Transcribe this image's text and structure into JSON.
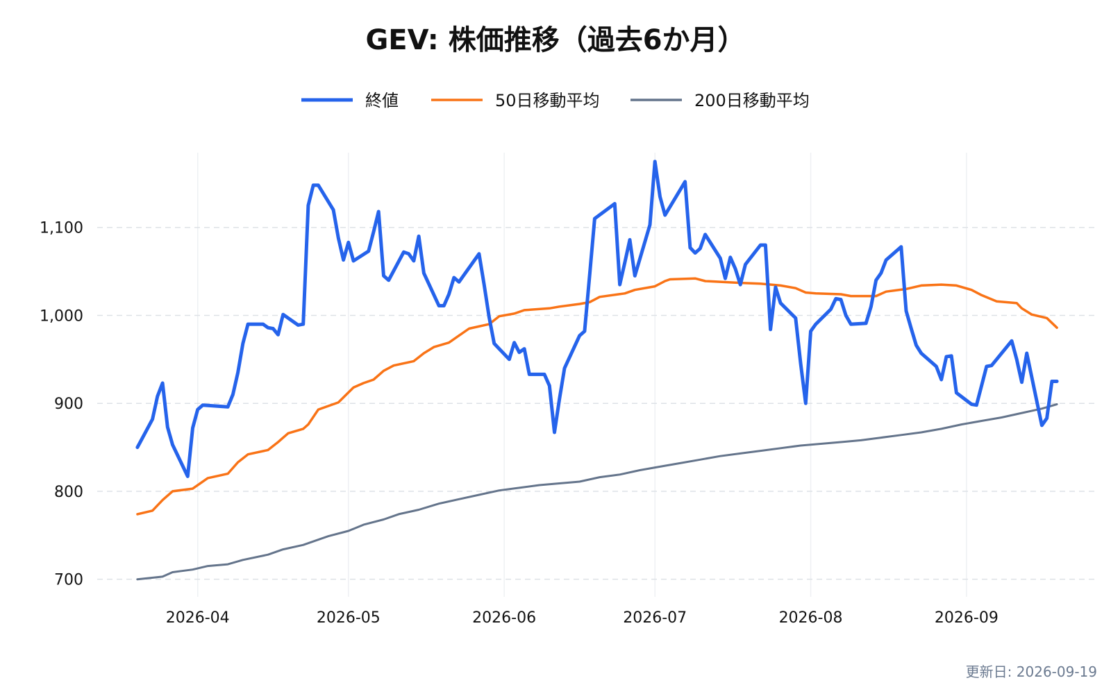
{
  "chart_data": {
    "type": "line",
    "title": "GEV: 株価推移（過去6か月）",
    "xlabel": "",
    "ylabel": "",
    "x_ticks": [
      "2026-04",
      "2026-05",
      "2026-06",
      "2026-07",
      "2026-08",
      "2026-09"
    ],
    "y_ticks": [
      700,
      800,
      900,
      1000,
      1100
    ],
    "y_tick_labels": [
      "700",
      "800",
      "900",
      "1,000",
      "1,100"
    ],
    "ylim": [
      680,
      1185
    ],
    "xlim": [
      "2026-03-12",
      "2026-09-27"
    ],
    "grid": "horizontal dashed, vertical solid light",
    "legend_position": "top-center",
    "footnote": "更新日: 2026-09-19",
    "series": [
      {
        "name": "終値",
        "color": "#2563eb",
        "points": [
          [
            "2026-03-20",
            850
          ],
          [
            "2026-03-23",
            882
          ],
          [
            "2026-03-24",
            908
          ],
          [
            "2026-03-25",
            923
          ],
          [
            "2026-03-26",
            873
          ],
          [
            "2026-03-27",
            853
          ],
          [
            "2026-03-30",
            817
          ],
          [
            "2026-03-31",
            872
          ],
          [
            "2026-04-01",
            893
          ],
          [
            "2026-04-02",
            898
          ],
          [
            "2026-04-07",
            896
          ],
          [
            "2026-04-08",
            910
          ],
          [
            "2026-04-09",
            935
          ],
          [
            "2026-04-10",
            968
          ],
          [
            "2026-04-11",
            990
          ],
          [
            "2026-04-14",
            990
          ],
          [
            "2026-04-15",
            986
          ],
          [
            "2026-04-16",
            985
          ],
          [
            "2026-04-17",
            978
          ],
          [
            "2026-04-18",
            1001
          ],
          [
            "2026-04-21",
            989
          ],
          [
            "2026-04-22",
            990
          ],
          [
            "2026-04-23",
            1125
          ],
          [
            "2026-04-24",
            1148
          ],
          [
            "2026-04-25",
            1148
          ],
          [
            "2026-04-28",
            1120
          ],
          [
            "2026-04-29",
            1088
          ],
          [
            "2026-04-30",
            1063
          ],
          [
            "2026-05-01",
            1083
          ],
          [
            "2026-05-02",
            1062
          ],
          [
            "2026-05-05",
            1073
          ],
          [
            "2026-05-06",
            1095
          ],
          [
            "2026-05-07",
            1118
          ],
          [
            "2026-05-08",
            1045
          ],
          [
            "2026-05-09",
            1040
          ],
          [
            "2026-05-12",
            1072
          ],
          [
            "2026-05-13",
            1070
          ],
          [
            "2026-05-14",
            1062
          ],
          [
            "2026-05-15",
            1090
          ],
          [
            "2026-05-16",
            1048
          ],
          [
            "2026-05-19",
            1011
          ],
          [
            "2026-05-20",
            1011
          ],
          [
            "2026-05-21",
            1024
          ],
          [
            "2026-05-22",
            1043
          ],
          [
            "2026-05-23",
            1038
          ],
          [
            "2026-05-27",
            1070
          ],
          [
            "2026-05-28",
            1035
          ],
          [
            "2026-05-29",
            998
          ],
          [
            "2026-05-30",
            968
          ],
          [
            "2026-06-02",
            950
          ],
          [
            "2026-06-03",
            969
          ],
          [
            "2026-06-04",
            958
          ],
          [
            "2026-06-05",
            962
          ],
          [
            "2026-06-06",
            933
          ],
          [
            "2026-06-09",
            933
          ],
          [
            "2026-06-10",
            920
          ],
          [
            "2026-06-11",
            867
          ],
          [
            "2026-06-12",
            905
          ],
          [
            "2026-06-13",
            940
          ],
          [
            "2026-06-16",
            977
          ],
          [
            "2026-06-17",
            982
          ],
          [
            "2026-06-18",
            1045
          ],
          [
            "2026-06-19",
            1110
          ],
          [
            "2026-06-23",
            1127
          ],
          [
            "2026-06-24",
            1035
          ],
          [
            "2026-06-25",
            1060
          ],
          [
            "2026-06-26",
            1086
          ],
          [
            "2026-06-27",
            1045
          ],
          [
            "2026-06-30",
            1103
          ],
          [
            "2026-07-01",
            1175
          ],
          [
            "2026-07-02",
            1135
          ],
          [
            "2026-07-03",
            1114
          ],
          [
            "2026-07-07",
            1152
          ],
          [
            "2026-07-08",
            1077
          ],
          [
            "2026-07-09",
            1071
          ],
          [
            "2026-07-10",
            1076
          ],
          [
            "2026-07-11",
            1092
          ],
          [
            "2026-07-14",
            1065
          ],
          [
            "2026-07-15",
            1042
          ],
          [
            "2026-07-16",
            1066
          ],
          [
            "2026-07-17",
            1053
          ],
          [
            "2026-07-18",
            1035
          ],
          [
            "2026-07-19",
            1058
          ],
          [
            "2026-07-22",
            1080
          ],
          [
            "2026-07-23",
            1080
          ],
          [
            "2026-07-24",
            984
          ],
          [
            "2026-07-25",
            1032
          ],
          [
            "2026-07-26",
            1014
          ],
          [
            "2026-07-29",
            997
          ],
          [
            "2026-07-30",
            945
          ],
          [
            "2026-07-31",
            900
          ],
          [
            "2026-08-01",
            982
          ],
          [
            "2026-08-02",
            990
          ],
          [
            "2026-08-05",
            1007
          ],
          [
            "2026-08-06",
            1019
          ],
          [
            "2026-08-07",
            1018
          ],
          [
            "2026-08-08",
            1000
          ],
          [
            "2026-08-09",
            990
          ],
          [
            "2026-08-12",
            991
          ],
          [
            "2026-08-13",
            1010
          ],
          [
            "2026-08-14",
            1040
          ],
          [
            "2026-08-15",
            1048
          ],
          [
            "2026-08-16",
            1063
          ],
          [
            "2026-08-19",
            1078
          ],
          [
            "2026-08-20",
            1005
          ],
          [
            "2026-08-21",
            985
          ],
          [
            "2026-08-22",
            966
          ],
          [
            "2026-08-23",
            957
          ],
          [
            "2026-08-26",
            942
          ],
          [
            "2026-08-27",
            927
          ],
          [
            "2026-08-28",
            953
          ],
          [
            "2026-08-29",
            954
          ],
          [
            "2026-08-30",
            912
          ],
          [
            "2026-09-02",
            899
          ],
          [
            "2026-09-03",
            898
          ],
          [
            "2026-09-04",
            920
          ],
          [
            "2026-09-05",
            942
          ],
          [
            "2026-09-06",
            943
          ],
          [
            "2026-09-10",
            971
          ],
          [
            "2026-09-11",
            950
          ],
          [
            "2026-09-12",
            924
          ],
          [
            "2026-09-13",
            957
          ],
          [
            "2026-09-16",
            875
          ],
          [
            "2026-09-17",
            883
          ],
          [
            "2026-09-18",
            925
          ],
          [
            "2026-09-19",
            925
          ]
        ]
      },
      {
        "name": "50日移動平均",
        "color": "#f97316",
        "points": [
          [
            "2026-03-20",
            774
          ],
          [
            "2026-03-23",
            778
          ],
          [
            "2026-03-25",
            790
          ],
          [
            "2026-03-27",
            800
          ],
          [
            "2026-03-31",
            803
          ],
          [
            "2026-04-03",
            815
          ],
          [
            "2026-04-07",
            820
          ],
          [
            "2026-04-09",
            833
          ],
          [
            "2026-04-11",
            842
          ],
          [
            "2026-04-15",
            847
          ],
          [
            "2026-04-17",
            856
          ],
          [
            "2026-04-19",
            866
          ],
          [
            "2026-04-22",
            871
          ],
          [
            "2026-04-23",
            876
          ],
          [
            "2026-04-25",
            893
          ],
          [
            "2026-04-29",
            901
          ],
          [
            "2026-05-02",
            918
          ],
          [
            "2026-05-04",
            923
          ],
          [
            "2026-05-06",
            927
          ],
          [
            "2026-05-08",
            937
          ],
          [
            "2026-05-10",
            943
          ],
          [
            "2026-05-14",
            948
          ],
          [
            "2026-05-16",
            957
          ],
          [
            "2026-05-18",
            964
          ],
          [
            "2026-05-21",
            969
          ],
          [
            "2026-05-23",
            977
          ],
          [
            "2026-05-25",
            985
          ],
          [
            "2026-05-29",
            990
          ],
          [
            "2026-05-31",
            999
          ],
          [
            "2026-06-03",
            1002
          ],
          [
            "2026-06-05",
            1006
          ],
          [
            "2026-06-10",
            1008
          ],
          [
            "2026-06-12",
            1010
          ],
          [
            "2026-06-16",
            1013
          ],
          [
            "2026-06-18",
            1015
          ],
          [
            "2026-06-20",
            1021
          ],
          [
            "2026-06-25",
            1025
          ],
          [
            "2026-06-27",
            1029
          ],
          [
            "2026-07-01",
            1033
          ],
          [
            "2026-07-03",
            1039
          ],
          [
            "2026-07-04",
            1041
          ],
          [
            "2026-07-09",
            1042
          ],
          [
            "2026-07-11",
            1039
          ],
          [
            "2026-07-18",
            1037
          ],
          [
            "2026-07-22",
            1036
          ],
          [
            "2026-07-26",
            1034
          ],
          [
            "2026-07-29",
            1031
          ],
          [
            "2026-07-31",
            1026
          ],
          [
            "2026-08-02",
            1025
          ],
          [
            "2026-08-07",
            1024
          ],
          [
            "2026-08-09",
            1022
          ],
          [
            "2026-08-14",
            1022
          ],
          [
            "2026-08-16",
            1027
          ],
          [
            "2026-08-20",
            1030
          ],
          [
            "2026-08-23",
            1034
          ],
          [
            "2026-08-27",
            1035
          ],
          [
            "2026-08-30",
            1034
          ],
          [
            "2026-09-02",
            1029
          ],
          [
            "2026-09-04",
            1023
          ],
          [
            "2026-09-07",
            1016
          ],
          [
            "2026-09-11",
            1014
          ],
          [
            "2026-09-12",
            1008
          ],
          [
            "2026-09-14",
            1001
          ],
          [
            "2026-09-17",
            997
          ],
          [
            "2026-09-19",
            986
          ]
        ]
      },
      {
        "name": "200日移動平均",
        "color": "#64748b",
        "points": [
          [
            "2026-03-20",
            700
          ],
          [
            "2026-03-25",
            703
          ],
          [
            "2026-03-27",
            708
          ],
          [
            "2026-03-31",
            711
          ],
          [
            "2026-04-03",
            715
          ],
          [
            "2026-04-07",
            717
          ],
          [
            "2026-04-10",
            722
          ],
          [
            "2026-04-15",
            728
          ],
          [
            "2026-04-18",
            734
          ],
          [
            "2026-04-22",
            739
          ],
          [
            "2026-04-27",
            749
          ],
          [
            "2026-05-01",
            755
          ],
          [
            "2026-05-04",
            762
          ],
          [
            "2026-05-08",
            768
          ],
          [
            "2026-05-11",
            774
          ],
          [
            "2026-05-15",
            779
          ],
          [
            "2026-05-19",
            786
          ],
          [
            "2026-05-23",
            791
          ],
          [
            "2026-05-27",
            796
          ],
          [
            "2026-05-31",
            801
          ],
          [
            "2026-06-04",
            804
          ],
          [
            "2026-06-08",
            807
          ],
          [
            "2026-06-12",
            809
          ],
          [
            "2026-06-16",
            811
          ],
          [
            "2026-06-20",
            816
          ],
          [
            "2026-06-24",
            819
          ],
          [
            "2026-06-28",
            824
          ],
          [
            "2026-07-02",
            828
          ],
          [
            "2026-07-06",
            832
          ],
          [
            "2026-07-10",
            836
          ],
          [
            "2026-07-14",
            840
          ],
          [
            "2026-07-18",
            843
          ],
          [
            "2026-07-22",
            846
          ],
          [
            "2026-07-26",
            849
          ],
          [
            "2026-07-30",
            852
          ],
          [
            "2026-08-03",
            854
          ],
          [
            "2026-08-07",
            856
          ],
          [
            "2026-08-11",
            858
          ],
          [
            "2026-08-15",
            861
          ],
          [
            "2026-08-19",
            864
          ],
          [
            "2026-08-23",
            867
          ],
          [
            "2026-08-27",
            871
          ],
          [
            "2026-08-31",
            876
          ],
          [
            "2026-09-04",
            880
          ],
          [
            "2026-09-08",
            884
          ],
          [
            "2026-09-12",
            889
          ],
          [
            "2026-09-16",
            894
          ],
          [
            "2026-09-19",
            899
          ]
        ]
      }
    ]
  }
}
